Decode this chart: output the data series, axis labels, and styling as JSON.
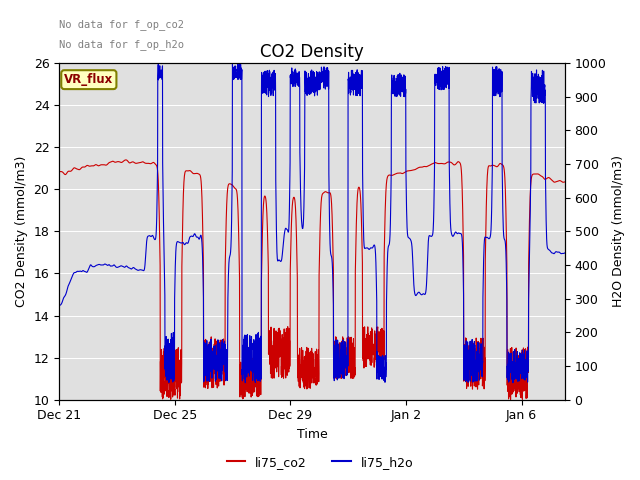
{
  "title": "CO2 Density",
  "xlabel": "Time",
  "ylabel_left": "CO2 Density (mmol/m3)",
  "ylabel_right": "H2O Density (mmol/m3)",
  "text_no_data_1": "No data for f_op_co2",
  "text_no_data_2": "No data for f_op_h2o",
  "vr_flux_label": "VR_flux",
  "legend_labels": [
    "li75_co2",
    "li75_h2o"
  ],
  "co2_color": "#cc0000",
  "h2o_color": "#0000cc",
  "ylim_left": [
    10,
    26
  ],
  "ylim_right": [
    0,
    1000
  ],
  "yticks_left": [
    10,
    12,
    14,
    16,
    18,
    20,
    22,
    24,
    26
  ],
  "yticks_right": [
    0,
    100,
    200,
    300,
    400,
    500,
    600,
    700,
    800,
    900,
    1000
  ],
  "xtick_labels": [
    "Dec 21",
    "Dec 25",
    "Dec 29",
    "Jan 2",
    "Jan 6"
  ],
  "plot_bg_color": "#e0e0e0",
  "line_width": 0.8,
  "title_fontsize": 12,
  "axis_fontsize": 9,
  "tick_fontsize": 9
}
